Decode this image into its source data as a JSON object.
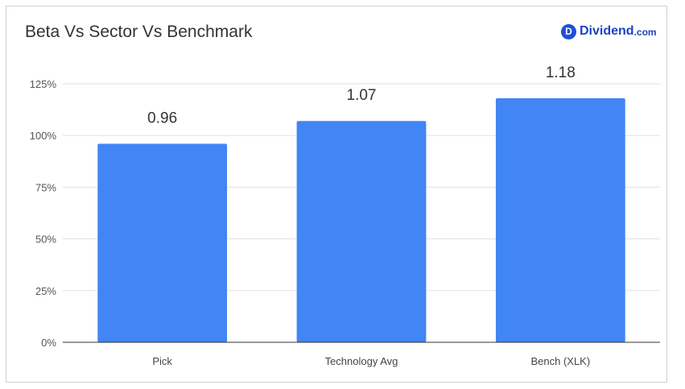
{
  "header": {
    "title": "Beta Vs Sector Vs Benchmark",
    "brand_mark": "D",
    "brand_name": "Dividend",
    "brand_tld": ".com"
  },
  "colors": {
    "bar": "#4285f4",
    "grid": "#e0e0e0",
    "axis": "#333333",
    "brand": "#1a44c2"
  },
  "chart_data": {
    "type": "bar",
    "title": "Beta Vs Sector Vs Benchmark",
    "xlabel": "",
    "ylabel": "",
    "categories": [
      "Pick",
      "Technology Avg",
      "Bench (XLK)"
    ],
    "values": [
      0.96,
      1.07,
      1.18
    ],
    "data_labels": [
      "0.96",
      "1.07",
      "1.18"
    ],
    "ylim": [
      0,
      1.25
    ],
    "y_ticks": [
      0,
      0.25,
      0.5,
      0.75,
      1.0,
      1.25
    ],
    "y_tick_labels": [
      "0%",
      "25%",
      "50%",
      "75%",
      "100%",
      "125%"
    ],
    "grid": true,
    "legend": "none"
  }
}
